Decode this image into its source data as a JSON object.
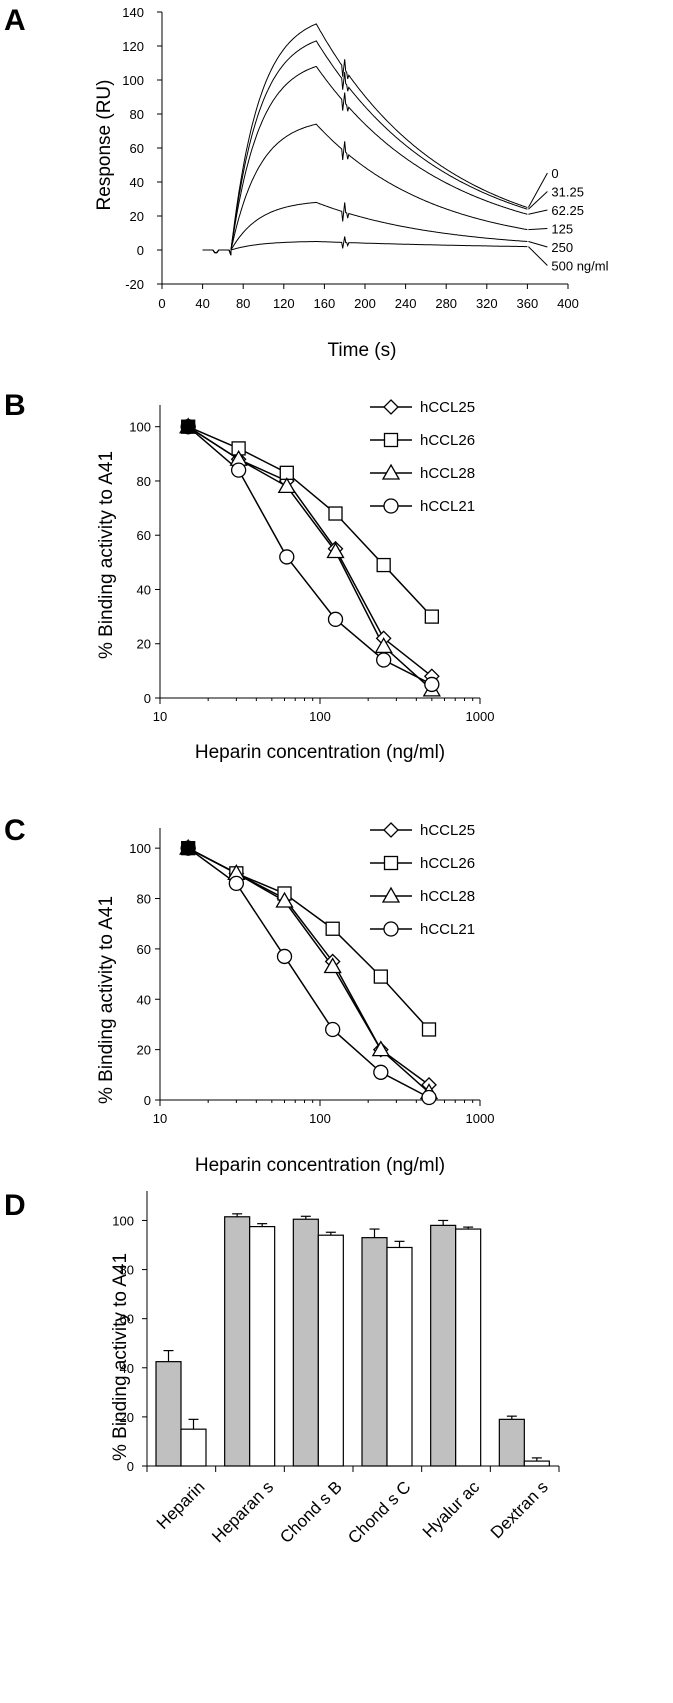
{
  "chart_data": [
    {
      "panel": "A",
      "type": "line",
      "xlabel": "Time (s)",
      "ylabel": "Response (RU)",
      "xlim": [
        0,
        400
      ],
      "ylim": [
        -20,
        140
      ],
      "xticks": [
        "0",
        "40",
        "80",
        "120",
        "160",
        "200",
        "240",
        "280",
        "320",
        "360",
        "400"
      ],
      "yticks": [
        "-20",
        "0",
        "20",
        "40",
        "60",
        "80",
        "100",
        "120",
        "140"
      ],
      "grid": false,
      "injection_start": 68,
      "injection_end": 152,
      "baseline_start": 40,
      "end_time": 360,
      "series": [
        {
          "label": "0",
          "peak": 133,
          "end": 25
        },
        {
          "label": "31.25",
          "peak": 123,
          "end": 24
        },
        {
          "label": "62.25",
          "peak": 108,
          "end": 21
        },
        {
          "label": "125",
          "peak": 74,
          "end": 12
        },
        {
          "label": "250",
          "peak": 28,
          "end": 5
        },
        {
          "label": "500 ng/ml",
          "peak": 5,
          "end": 2
        }
      ]
    },
    {
      "panel": "B",
      "type": "line",
      "xscale": "log",
      "xlabel": "Heparin concentration (ng/ml)",
      "ylabel": "% Binding activity to A41",
      "xlim": [
        10,
        1000
      ],
      "ylim": [
        0,
        108
      ],
      "xticks": [
        "10",
        "100",
        "1000"
      ],
      "yticks": [
        "0",
        "20",
        "40",
        "60",
        "80",
        "100"
      ],
      "legend_position": "top-right",
      "x": [
        15,
        31,
        62,
        125,
        250,
        500
      ],
      "series": [
        {
          "name": "hCCL25",
          "marker": "diamond",
          "values": [
            100,
            88,
            80,
            55,
            22,
            8
          ]
        },
        {
          "name": "hCCL26",
          "marker": "square",
          "values": [
            100,
            92,
            83,
            68,
            49,
            30
          ]
        },
        {
          "name": "hCCL28",
          "marker": "triangle",
          "values": [
            100,
            88,
            78,
            54,
            19,
            3
          ]
        },
        {
          "name": "hCCL21",
          "marker": "circle",
          "values": [
            100,
            84,
            52,
            29,
            14,
            5
          ]
        }
      ]
    },
    {
      "panel": "C",
      "type": "line",
      "xscale": "log",
      "xlabel": "Heparin concentration (ng/ml)",
      "ylabel": "% Binding activity to A41",
      "xlim": [
        10,
        1000
      ],
      "ylim": [
        0,
        108
      ],
      "xticks": [
        "10",
        "100",
        "1000"
      ],
      "yticks": [
        "0",
        "20",
        "40",
        "60",
        "80",
        "100"
      ],
      "legend_position": "top-right",
      "x": [
        15,
        30,
        60,
        120,
        240,
        480
      ],
      "series": [
        {
          "name": "hCCL25",
          "marker": "diamond",
          "values": [
            100,
            90,
            80,
            55,
            20,
            6
          ]
        },
        {
          "name": "hCCL26",
          "marker": "square",
          "values": [
            100,
            90,
            82,
            68,
            49,
            28
          ]
        },
        {
          "name": "hCCL28",
          "marker": "triangle",
          "values": [
            100,
            90,
            79,
            53,
            20,
            3
          ]
        },
        {
          "name": "hCCL21",
          "marker": "circle",
          "values": [
            100,
            86,
            57,
            28,
            11,
            1
          ]
        }
      ]
    },
    {
      "panel": "D",
      "type": "bar",
      "ylabel": "% Binding activity to A41",
      "ylim": [
        0,
        112
      ],
      "yticks": [
        "0",
        "20",
        "40",
        "60",
        "80",
        "100"
      ],
      "categories": [
        "Heparin",
        "Heparan s",
        "Chond s B",
        "Chond s C",
        "Hyalur ac",
        "Dextran s"
      ],
      "series": [
        {
          "fill": "#c0c0c0",
          "values": [
            42.5,
            101.5,
            100.5,
            93,
            98,
            19
          ],
          "errors": [
            4.5,
            1.2,
            1.2,
            3.5,
            2,
            1.3
          ]
        },
        {
          "fill": "#ffffff",
          "values": [
            15,
            97.5,
            94,
            89,
            96.5,
            2
          ],
          "errors": [
            4,
            1.2,
            1.2,
            2.5,
            0.8,
            1.3
          ]
        }
      ]
    }
  ],
  "colors": {
    "line": "#000000",
    "bar_gray": "#c0c0c0",
    "bar_white": "#ffffff"
  }
}
